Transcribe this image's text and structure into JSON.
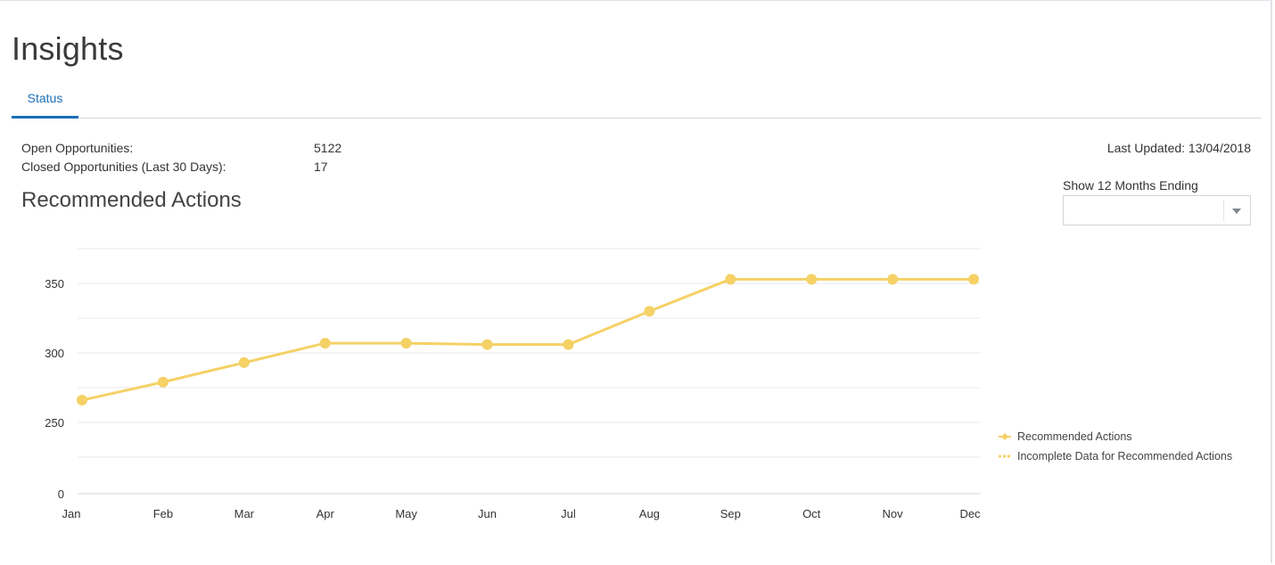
{
  "page": {
    "title": "Insights",
    "tabs": [
      {
        "label": "Status",
        "active": true
      }
    ]
  },
  "metrics": [
    {
      "label": "Open Opportunities:",
      "value": "5122"
    },
    {
      "label": "Closed Opportunities (Last 30 Days):",
      "value": "17"
    }
  ],
  "last_updated": "Last Updated: 13/04/2018",
  "filter": {
    "label": "Show 12 Months Ending",
    "value": "",
    "icon": "chevron-down-icon"
  },
  "section": {
    "title": "Recommended Actions"
  },
  "legend": [
    {
      "label": "Recommended Actions",
      "marker": "diamond-line"
    },
    {
      "label": "Incomplete Data for Recommended Actions",
      "marker": "dashed-line"
    }
  ],
  "colors": {
    "accent": "#1a6fb5",
    "series": "#f5d166"
  },
  "chart_data": {
    "type": "line",
    "title": "",
    "xlabel": "",
    "ylabel": "",
    "categories": [
      "Jan",
      "Feb",
      "Mar",
      "Apr",
      "May",
      "Jun",
      "Jul",
      "Aug",
      "Sep",
      "Oct",
      "Nov",
      "Dec"
    ],
    "series": [
      {
        "name": "Recommended Actions",
        "values": [
          266,
          279,
          293,
          307,
          307,
          306,
          306,
          330,
          353,
          353,
          353,
          353
        ]
      }
    ],
    "yticks": [
      350,
      300,
      250,
      0
    ],
    "ytick_labels": [
      "350",
      "300",
      "250",
      "0"
    ],
    "ylim": [
      0,
      375
    ],
    "axis_break": true,
    "grid": true,
    "legend_position": "right"
  }
}
